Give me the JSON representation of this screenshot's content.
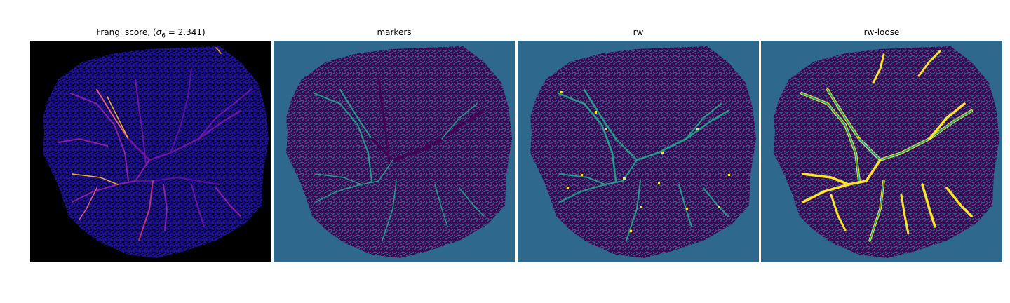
{
  "panels": [
    {
      "title_main": "Frangi score, (",
      "title_sigma": "σ",
      "title_sub": "6",
      "title_rest": " = 2.341)"
    },
    {
      "title": "markers"
    },
    {
      "title": "rw"
    },
    {
      "title": "rw-loose"
    }
  ],
  "colors": {
    "frangi_background": "#000000",
    "frangi_texture": "#1c0fa0",
    "frangi_vessel_mid": "#8c1fa6",
    "frangi_vessel_high": "#f0b02a",
    "label_background": "#2f688d",
    "label_texture": "#440154",
    "label_marker": "#21a08a",
    "label_bright": "#fde725"
  }
}
